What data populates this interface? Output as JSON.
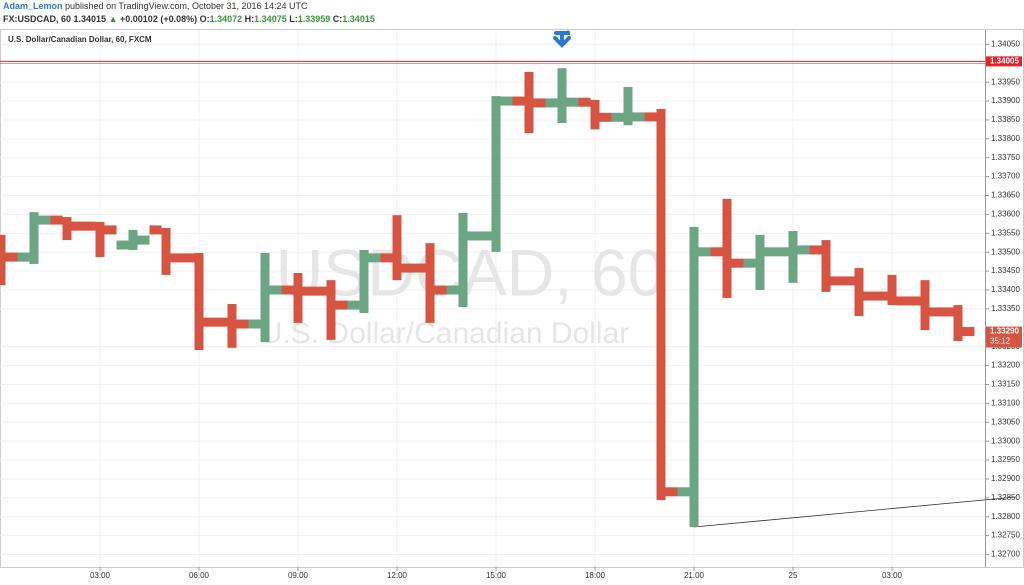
{
  "header": {
    "author": "Adam_Lemon",
    "published": "published on TradingView.com, October 31, 2016 14:24 UTC",
    "symbol": "FX:USDCAD, 60",
    "price": "1.34015",
    "change": "+0.00102 (+0.08%)",
    "ohlc": [
      {
        "label": "O:",
        "value": "1.34072"
      },
      {
        "label": "H:",
        "value": "1.34075"
      },
      {
        "label": "L:",
        "value": "1.33959"
      },
      {
        "label": "C:",
        "value": "1.34015"
      }
    ]
  },
  "chart_data": {
    "type": "ohlc",
    "title": "U.S. Dollar/Canadian Dollar, 60, FXCM",
    "watermark": "USDCAD, 60",
    "watermark_subtitle": "U.S. Dollar/Canadian Dollar",
    "categories": [
      null,
      null,
      null,
      "03:00",
      null,
      null,
      "06:00",
      null,
      null,
      "09:00",
      null,
      null,
      "12:00",
      null,
      null,
      "15:00",
      null,
      null,
      "18:00",
      null,
      null,
      "21:00",
      null,
      null,
      "25",
      null,
      null,
      "03:00",
      null,
      null
    ],
    "open": [
      1.335,
      1.33487,
      1.33585,
      1.33569,
      1.33519,
      1.33559,
      1.33485,
      1.33315,
      1.3331,
      1.334,
      1.33397,
      1.3336,
      1.33485,
      1.33458,
      1.334,
      1.33543,
      1.339,
      1.33895,
      1.33897,
      1.33857,
      1.33858,
      1.32866,
      1.33501,
      1.33471,
      1.33501,
      1.33506,
      1.33424,
      1.33384,
      1.33371,
      1.33342
    ],
    "high": [
      1.33546,
      1.33606,
      1.33593,
      1.3358,
      1.33559,
      1.33564,
      1.33498,
      1.33363,
      1.33498,
      1.33445,
      1.33426,
      1.33506,
      1.33598,
      1.33524,
      1.33604,
      1.33913,
      1.33977,
      1.33987,
      1.33903,
      1.33937,
      1.33879,
      1.33567,
      1.33641,
      1.33546,
      1.33556,
      1.33532,
      1.33458,
      1.3344,
      1.33426,
      1.3336
    ],
    "low": [
      1.33413,
      1.33469,
      1.33532,
      1.33487,
      1.33506,
      1.3344,
      1.33241,
      1.33247,
      1.33262,
      1.33313,
      1.33268,
      1.33339,
      1.33426,
      1.33313,
      1.33355,
      1.33501,
      1.33815,
      1.33842,
      1.33825,
      1.33836,
      1.32844,
      1.32773,
      1.33379,
      1.334,
      1.33419,
      1.33395,
      1.33331,
      1.3336,
      1.33294,
      1.33265
    ],
    "close": [
      1.33487,
      1.33585,
      1.33569,
      1.33559,
      1.33532,
      1.33485,
      1.33315,
      1.3331,
      1.334,
      1.33397,
      1.3336,
      1.33485,
      1.33458,
      1.334,
      1.33543,
      1.339,
      1.33895,
      1.33897,
      1.33857,
      1.33858,
      1.32866,
      1.33501,
      1.33471,
      1.33501,
      1.33506,
      1.33424,
      1.33384,
      1.33371,
      1.33342,
      1.3329
    ],
    "up_color": "#6ba583",
    "down_color": "#d75442",
    "ylim": [
      1.32667,
      1.34088
    ],
    "yticks": [
      {
        "value": 1.3405,
        "label": "1.34050"
      },
      {
        "value": 1.3395,
        "label": "1.33950"
      },
      {
        "value": 1.339,
        "label": "1.33900"
      },
      {
        "value": 1.3385,
        "label": "1.33850"
      },
      {
        "value": 1.338,
        "label": "1.33800"
      },
      {
        "value": 1.3375,
        "label": "1.33750"
      },
      {
        "value": 1.337,
        "label": "1.33700"
      },
      {
        "value": 1.3365,
        "label": "1.33650"
      },
      {
        "value": 1.336,
        "label": "1.33600"
      },
      {
        "value": 1.3355,
        "label": "1.33550"
      },
      {
        "value": 1.335,
        "label": "1.33500"
      },
      {
        "value": 1.3345,
        "label": "1.33450"
      },
      {
        "value": 1.334,
        "label": "1.33400"
      },
      {
        "value": 1.3335,
        "label": "1.33350"
      },
      {
        "value": 1.3325,
        "label": "1.33250"
      },
      {
        "value": 1.332,
        "label": "1.33200"
      },
      {
        "value": 1.3315,
        "label": "1.33150"
      },
      {
        "value": 1.331,
        "label": "1.33100"
      },
      {
        "value": 1.3305,
        "label": "1.33050"
      },
      {
        "value": 1.33,
        "label": "1.33000"
      },
      {
        "value": 1.3295,
        "label": "1.32950"
      },
      {
        "value": 1.329,
        "label": "1.32900"
      },
      {
        "value": 1.3285,
        "label": "1.32850"
      },
      {
        "value": 1.328,
        "label": "1.32800"
      },
      {
        "value": 1.3275,
        "label": "1.32750"
      },
      {
        "value": 1.327,
        "label": "1.32700"
      }
    ],
    "hline": {
      "value": 1.34005,
      "label": "1.34005",
      "color": "#e3242b"
    },
    "last_price": {
      "value": 1.3329,
      "label": "1.33290"
    },
    "countdown": "35:12"
  }
}
